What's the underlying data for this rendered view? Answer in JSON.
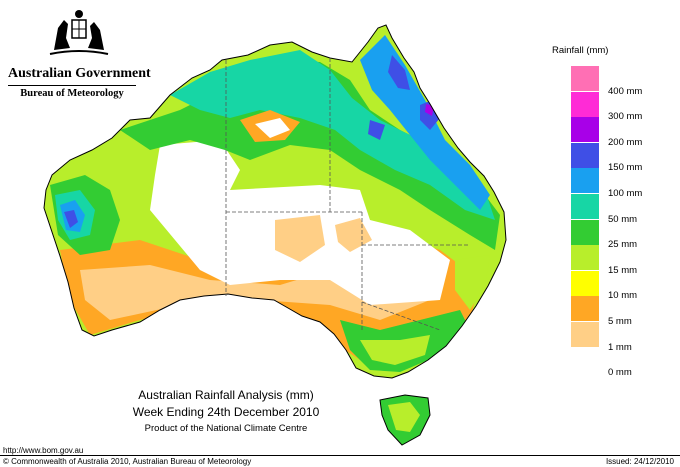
{
  "branding": {
    "government": "Australian Government",
    "bureau": "Bureau of Meteorology",
    "crest_icon": "australian-coat-of-arms-icon"
  },
  "legend": {
    "title": "Rainfall (mm)",
    "bands": [
      {
        "color": "#ff6fb4",
        "label": ""
      },
      {
        "color": "#ff2bd6",
        "label": "400 mm"
      },
      {
        "color": "#a800e8",
        "label": "300 mm"
      },
      {
        "color": "#3f4fe6",
        "label": "200 mm"
      },
      {
        "color": "#19a0f0",
        "label": "150 mm"
      },
      {
        "color": "#17d6a5",
        "label": "100 mm"
      },
      {
        "color": "#33cc33",
        "label": "50 mm"
      },
      {
        "color": "#b8ee2b",
        "label": "25 mm"
      },
      {
        "color": "#ffff00",
        "label": "15 mm"
      },
      {
        "color": "#ffa724",
        "label": "10 mm"
      },
      {
        "color": "#ffcf86",
        "label": "5 mm"
      },
      {
        "color": "#ffffff",
        "label": "1 mm"
      },
      {
        "color": "",
        "label": "0 mm"
      }
    ]
  },
  "caption": {
    "title": "Australian Rainfall Analysis (mm)",
    "period": "Week Ending 24th December 2010",
    "producer": "Product of the National Climate Centre"
  },
  "footer": {
    "url": "http://www.bom.gov.au",
    "copyright": "© Commonwealth of Australia 2010, Australian Bureau of Meteorology",
    "issued": "Issued: 24/12/2010"
  }
}
